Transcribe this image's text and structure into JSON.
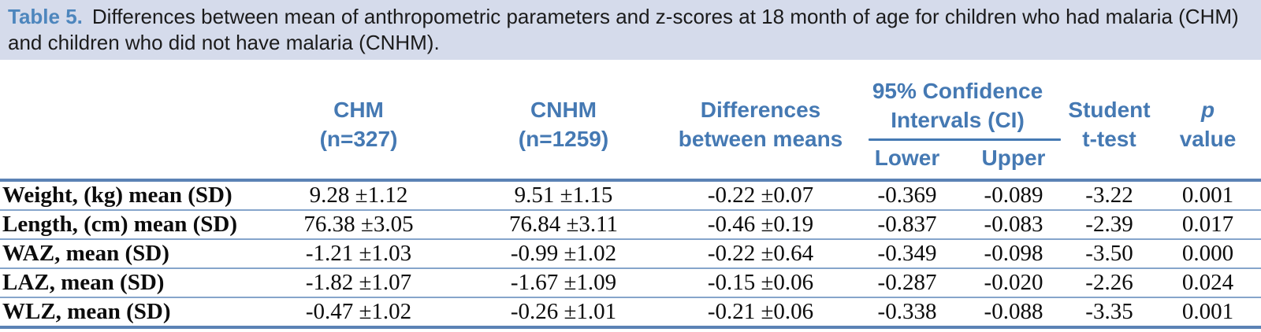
{
  "caption": {
    "label": "Table 5.",
    "text": "Differences between mean of anthropometric parameters and z-scores at 18 month of age for children who had malaria (CHM) and children who did not have malaria (CNHM)."
  },
  "header": {
    "chm": {
      "line1": "CHM",
      "line2": "(n=327)"
    },
    "cnhm": {
      "line1": "CNHM",
      "line2": "(n=1259)"
    },
    "diff": {
      "line1": "Differences",
      "line2": "between means"
    },
    "ci": {
      "line1": "95% Confidence",
      "line2": "Intervals (CI)",
      "sub_lower": "Lower",
      "sub_upper": "Upper"
    },
    "ttest": {
      "line1": "Student",
      "line2": "t-test"
    },
    "p": {
      "line1": "p",
      "line2": "value"
    }
  },
  "rows": [
    {
      "label": "Weight, (kg) mean (SD)",
      "chm": "9.28 ±1.12",
      "cnhm": "9.51 ±1.15",
      "diff": "-0.22 ±0.07",
      "lower": "-0.369",
      "upper": "-0.089",
      "ttest": "-3.22",
      "p": "0.001"
    },
    {
      "label": "Length, (cm) mean (SD)",
      "chm": "76.38 ±3.05",
      "cnhm": "76.84 ±3.11",
      "diff": "-0.46 ±0.19",
      "lower": "-0.837",
      "upper": "-0.083",
      "ttest": "-2.39",
      "p": "0.017"
    },
    {
      "label": "WAZ, mean (SD)",
      "chm": "-1.21 ±1.03",
      "cnhm": "-0.99 ±1.02",
      "diff": "-0.22 ±0.64",
      "lower": "-0.349",
      "upper": "-0.098",
      "ttest": "-3.50",
      "p": "0.000"
    },
    {
      "label": "LAZ, mean (SD)",
      "chm": "-1.82 ±1.07",
      "cnhm": "-1.67 ±1.09",
      "diff": "-0.15 ±0.06",
      "lower": "-0.287",
      "upper": "-0.020",
      "ttest": "-2.26",
      "p": "0.024"
    },
    {
      "label": "WLZ, mean (SD)",
      "chm": "-0.47 ±1.02",
      "cnhm": "-0.26 ±1.01",
      "diff": "-0.21 ±0.06",
      "lower": "-0.338",
      "upper": "-0.088",
      "ttest": "-3.35",
      "p": "0.001"
    }
  ],
  "colors": {
    "caption_bg": "#d5dbeb",
    "caption_label_blue": "#4d86bd",
    "header_blue": "#4579b3",
    "thick_border_blue": "#5b82b5",
    "row_separator_blue": "#86a5cb"
  }
}
